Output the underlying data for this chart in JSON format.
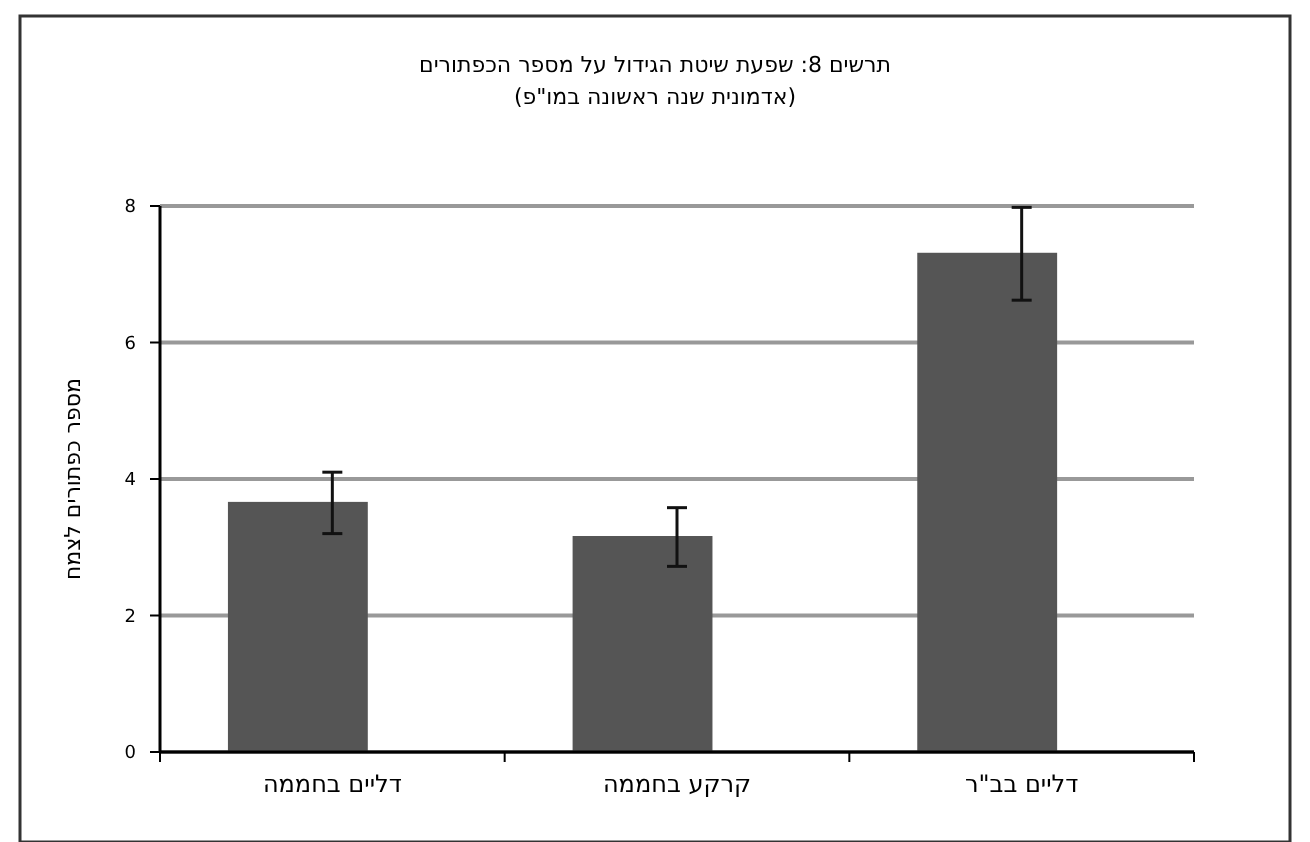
{
  "chart_data": {
    "type": "bar",
    "title": "תרשים 8: שפעת שיטת הגידול על מספר הכפתורים",
    "subtitle": "(אדמונית שנה ראשונה במו\"פ)",
    "ylabel": "מספר כפתורים לצמח",
    "categories": [
      "דליים בחממה",
      "קרקע בחממה",
      "דליים בב\"ר"
    ],
    "values": [
      3.65,
      3.15,
      7.3
    ],
    "errors": [
      0.45,
      0.43,
      0.68
    ],
    "color": "#555555",
    "ylim": [
      0,
      8
    ],
    "yticks": [
      0,
      2,
      4,
      6,
      8
    ],
    "grid": "y"
  }
}
